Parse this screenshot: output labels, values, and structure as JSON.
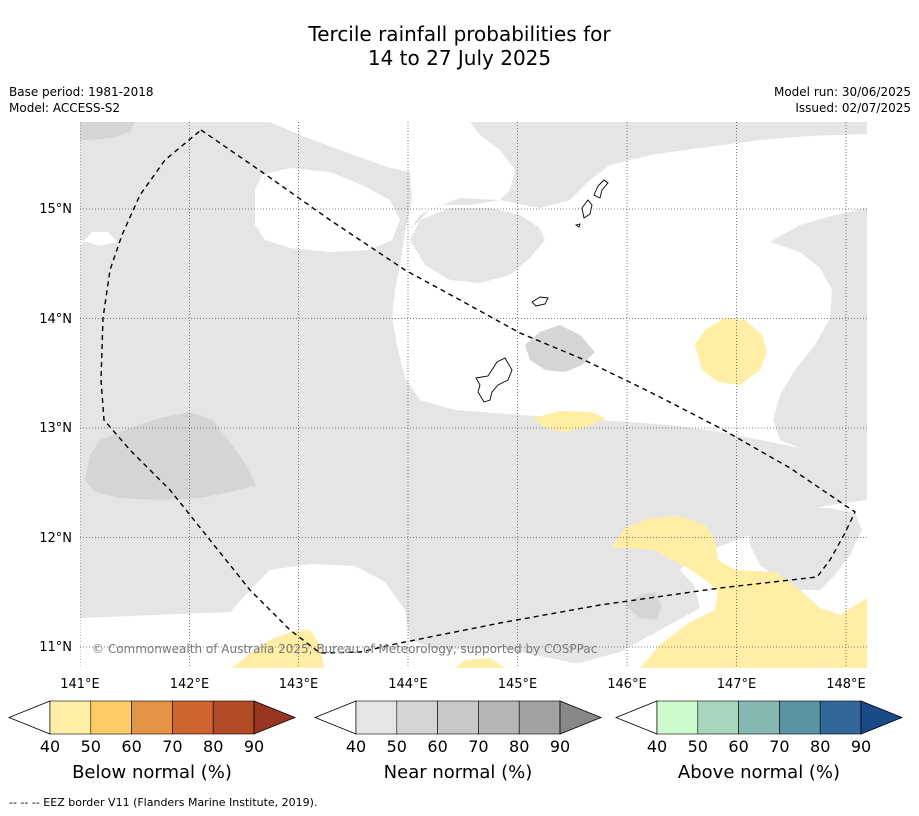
{
  "title": {
    "line1": "Tercile rainfall probabilities for",
    "line2": "14 to 27 July 2025"
  },
  "meta": {
    "base_period": "Base period: 1981-2018",
    "model": "Model: ACCESS-S2",
    "model_run": "Model run: 30/06/2025",
    "issued": "Issued: 02/07/2025"
  },
  "map": {
    "lon_labels": [
      "141°E",
      "142°E",
      "143°E",
      "144°E",
      "145°E",
      "146°E",
      "147°E",
      "148°E"
    ],
    "lat_labels": [
      "15°N",
      "14°N",
      "13°N",
      "12°N",
      "11°N"
    ],
    "copyright": "© Commonwealth of Australia 2025, Bureau of Meteorology, supported by COSPPac"
  },
  "colorbars": [
    {
      "name": "below",
      "title": "Below normal (%)",
      "ticks": [
        "40",
        "50",
        "60",
        "70",
        "80",
        "90"
      ],
      "colors": [
        "#ffffff",
        "#ffeea3",
        "#fdcc66",
        "#e39444",
        "#cf6431",
        "#b34b26",
        "#963520"
      ]
    },
    {
      "name": "near",
      "title": "Near normal (%)",
      "ticks": [
        "40",
        "50",
        "60",
        "70",
        "80",
        "90"
      ],
      "colors": [
        "#ffffff",
        "#e5e5e5",
        "#d5d5d5",
        "#c8c8c8",
        "#b5b5b5",
        "#a2a2a2",
        "#888888"
      ]
    },
    {
      "name": "above",
      "title": "Above normal (%)",
      "ticks": [
        "40",
        "50",
        "60",
        "70",
        "80",
        "90"
      ],
      "colors": [
        "#ffffff",
        "#cdfbcd",
        "#a6d6bc",
        "#84b8b0",
        "#5a93a3",
        "#33679a",
        "#1a4a88"
      ]
    }
  ],
  "footer": "--  --  -- EEZ border V11 (Flanders Marine Institute, 2019)."
}
